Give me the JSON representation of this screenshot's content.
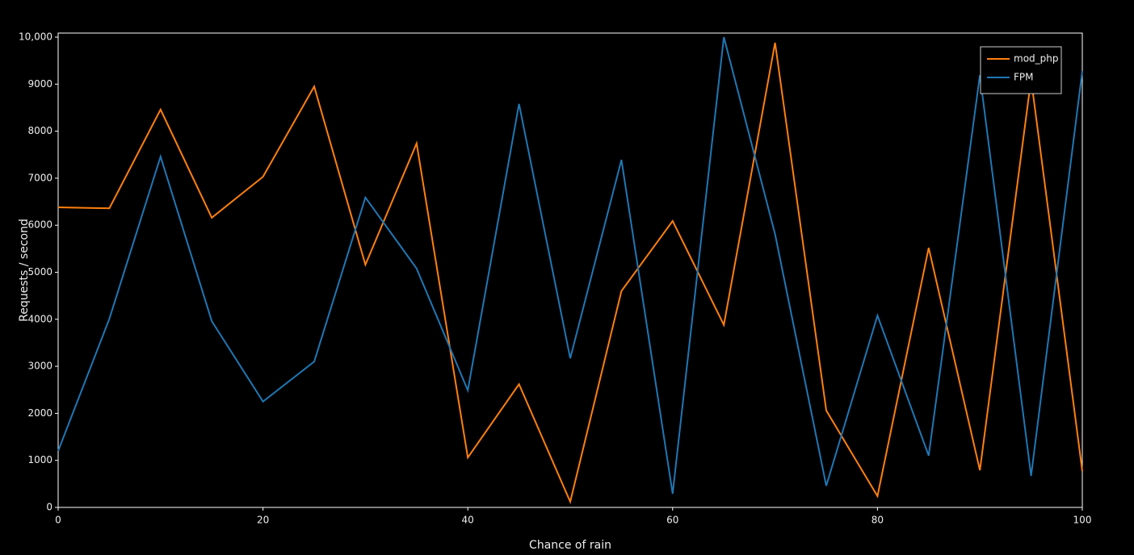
{
  "chart_data": {
    "type": "line",
    "x_label": "Chance of rain",
    "y_label": "Requests / second",
    "x": [
      0,
      5,
      10,
      15,
      20,
      25,
      30,
      35,
      40,
      45,
      50,
      55,
      60,
      65,
      70,
      75,
      80,
      85,
      90,
      95,
      100
    ],
    "series": [
      {
        "name": "mod_php",
        "color": "#ff7f0e",
        "values": [
          6380,
          6360,
          8460,
          6160,
          7030,
          8950,
          5160,
          7740,
          1060,
          2620,
          120,
          4600,
          6090,
          3880,
          9880,
          2060,
          240,
          5520,
          790,
          9110,
          770
        ]
      },
      {
        "name": "FPM",
        "color": "#1f77b4",
        "values": [
          1200,
          4010,
          7460,
          3960,
          2250,
          3100,
          6590,
          5080,
          2490,
          8580,
          3170,
          7390,
          290,
          10000,
          5810,
          460,
          4080,
          1100,
          9190,
          670,
          9280
        ]
      }
    ],
    "xlim": [
      0,
      100
    ],
    "xticks": [
      0,
      20,
      40,
      60,
      80,
      100
    ],
    "ylim": [
      0,
      10000
    ],
    "yticks": [
      0,
      1000,
      2000,
      3000,
      4000,
      5000,
      6000,
      7000,
      8000,
      9000,
      {
        "value": 10000,
        "label": "10,000"
      }
    ],
    "legend": "top-right"
  }
}
